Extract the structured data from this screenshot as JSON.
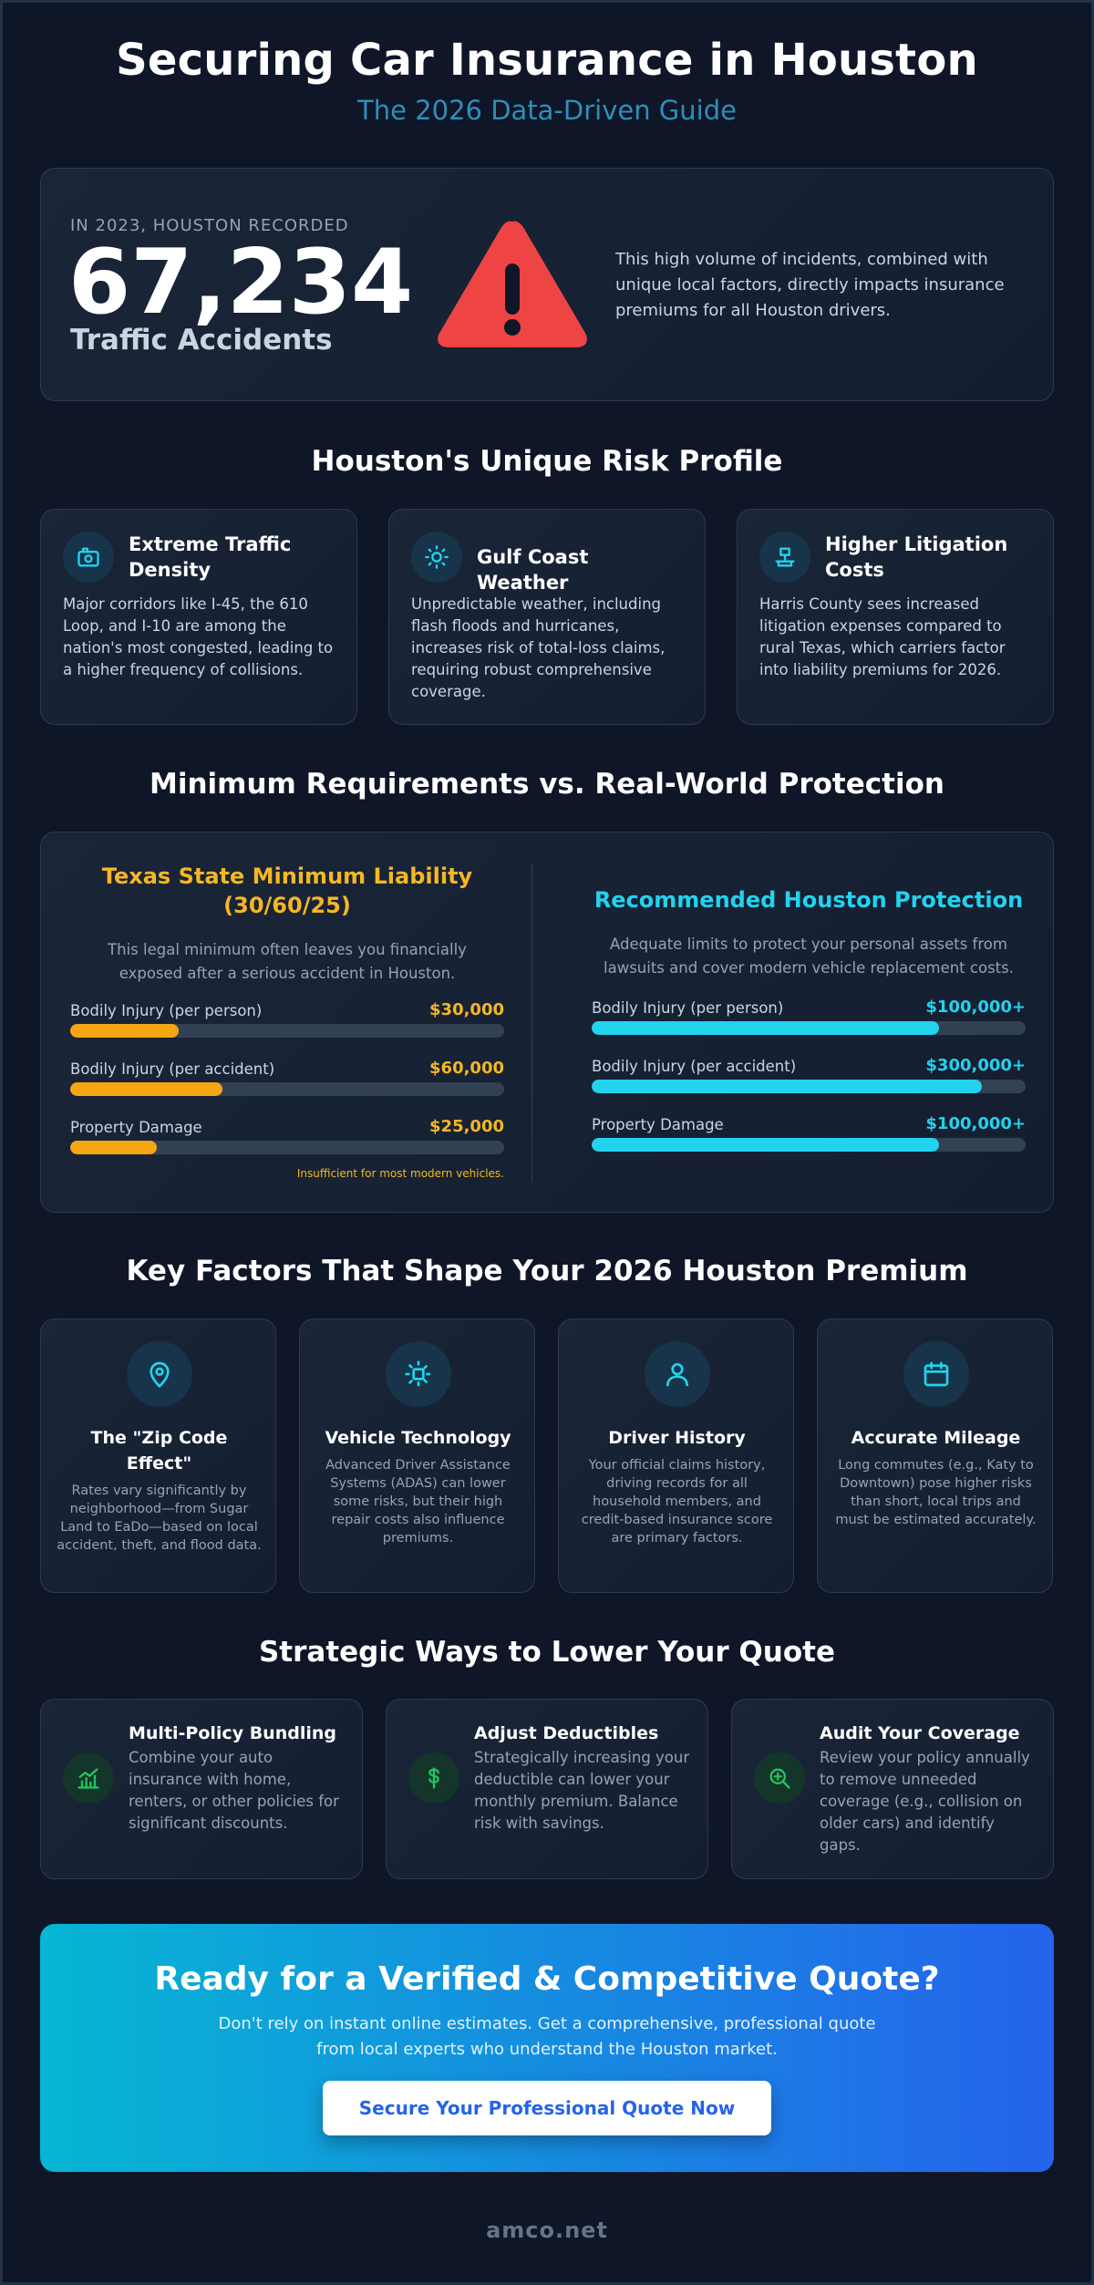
{
  "header": {
    "title": "Securing Car Insurance in Houston",
    "subtitle": "The 2026 Data-Driven Guide"
  },
  "hero": {
    "kicker": "IN 2023, HOUSTON RECORDED",
    "number": "67,234",
    "unit": "Traffic Accidents",
    "icon": "warning-triangle-icon",
    "description": "This high volume of incidents, combined with unique local factors, directly impacts insurance premiums for all Houston drivers."
  },
  "risk": {
    "title": "Houston's Unique Risk Profile",
    "cards": [
      {
        "icon": "traffic-camera-icon",
        "title": "Extreme Traffic Density",
        "text": "Major corridors like I-45, the 610 Loop, and I-10 are among the nation's most congested, leading to a higher frequency of collisions."
      },
      {
        "icon": "sun-icon",
        "title": "Gulf Coast Weather",
        "text": "Unpredictable weather, including flash floods and hurricanes, increases risk of total-loss claims, requiring robust comprehensive coverage."
      },
      {
        "icon": "gavel-icon",
        "title": "Higher Litigation Costs",
        "text": "Harris County sees increased litigation expenses compared to rural Texas, which carriers factor into liability premiums for 2026."
      }
    ]
  },
  "compare": {
    "title": "Minimum Requirements vs. Real-World Protection",
    "minimum": {
      "title": "Texas State Minimum Liability (30/60/25)",
      "subtitle": "This legal minimum often leaves you financially exposed after a serious accident in Houston.",
      "color": "#f5a612",
      "rows": [
        {
          "label": "Bodily Injury (per person)",
          "value": "$30,000",
          "fill": 0.25
        },
        {
          "label": "Bodily Injury (per accident)",
          "value": "$60,000",
          "fill": 0.35
        },
        {
          "label": "Property Damage",
          "value": "$25,000",
          "fill": 0.2
        }
      ],
      "note": "Insufficient for most modern vehicles."
    },
    "recommended": {
      "title": "Recommended Houston Protection",
      "subtitle": "Adequate limits to protect your personal assets from lawsuits and cover modern vehicle replacement costs.",
      "color": "#22d3ee",
      "rows": [
        {
          "label": "Bodily Injury (per person)",
          "value": "$100,000+",
          "fill": 0.8
        },
        {
          "label": "Bodily Injury (per accident)",
          "value": "$300,000+",
          "fill": 0.9
        },
        {
          "label": "Property Damage",
          "value": "$100,000+",
          "fill": 0.8
        }
      ]
    }
  },
  "factors": {
    "title": "Key Factors That Shape Your 2026 Houston Premium",
    "cards": [
      {
        "icon": "map-pin-icon",
        "title": "The \"Zip Code Effect\"",
        "text": "Rates vary significantly by neighborhood—from Sugar Land to EaDo—based on local accident, theft, and flood data."
      },
      {
        "icon": "chip-icon",
        "title": "Vehicle Technology",
        "text": "Advanced Driver Assistance Systems (ADAS) can lower some risks, but their high repair costs also influence premiums."
      },
      {
        "icon": "user-icon",
        "title": "Driver History",
        "text": "Your official claims history, driving records for all household members, and credit-based insurance score are primary factors."
      },
      {
        "icon": "calendar-icon",
        "title": "Accurate Mileage",
        "text": "Long commutes (e.g., Katy to Downtown) pose higher risks than short, local trips and must be estimated accurately."
      }
    ]
  },
  "strategies": {
    "title": "Strategic Ways to Lower Your Quote",
    "cards": [
      {
        "icon": "bundle-chart-icon",
        "title": "Multi-Policy Bundling",
        "text": "Combine your auto insurance with home, renters, or other policies for significant discounts."
      },
      {
        "icon": "dollar-icon",
        "title": "Adjust Deductibles",
        "text": "Strategically increasing your deductible can lower your monthly premium. Balance risk with savings."
      },
      {
        "icon": "search-plus-icon",
        "title": "Audit Your Coverage",
        "text": "Review your policy annually to remove unneeded coverage (e.g., collision on older cars) and identify gaps."
      }
    ]
  },
  "cta": {
    "title": "Ready for a Verified & Competitive Quote?",
    "text": "Don't rely on instant online estimates. Get a comprehensive, professional quote from local experts who understand the Houston market.",
    "button": "Secure Your Professional Quote Now"
  },
  "footer": "amco.net"
}
